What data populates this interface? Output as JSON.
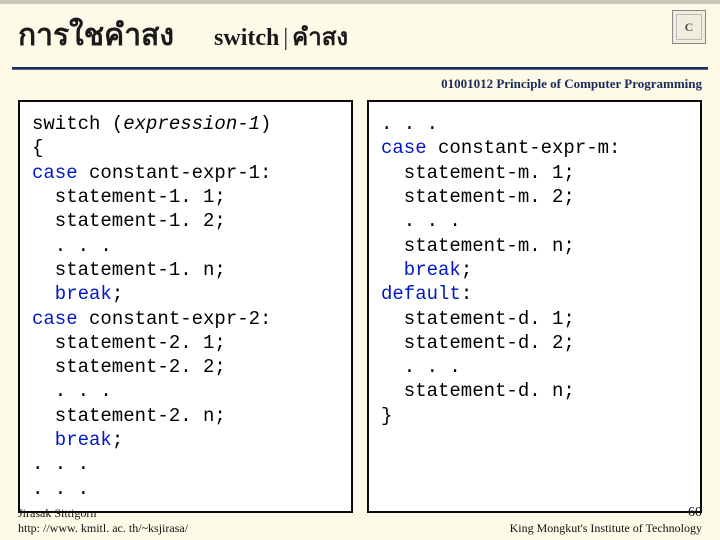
{
  "header": {
    "title_main": "การใชคำสง",
    "title_sub_left": "switch",
    "title_sub_right": "คำสง"
  },
  "course_line": "01001012 Principle of Computer Programming",
  "code_left": {
    "lines": [
      {
        "t": "switch (",
        "k": false
      },
      {
        "t": "expression-1",
        "k": false,
        "em": true
      },
      {
        "t": ")",
        "k": false,
        "br": true
      },
      {
        "t": "{",
        "k": false,
        "br": true
      },
      {
        "t": "case",
        "k": true
      },
      {
        "t": " constant-expr-1:",
        "k": false,
        "br": true
      },
      {
        "t": "statement-1. 1;",
        "k": false,
        "ind": true,
        "br": true
      },
      {
        "t": "statement-1. 2;",
        "k": false,
        "ind": true,
        "br": true
      },
      {
        "t": ". . .",
        "k": false,
        "ind": true,
        "br": true
      },
      {
        "t": "statement-1. n;",
        "k": false,
        "ind": true,
        "br": true
      },
      {
        "t": "break",
        "k": true,
        "ind": true
      },
      {
        "t": ";",
        "k": false,
        "br": true
      },
      {
        "t": "case",
        "k": true
      },
      {
        "t": " constant-expr-2:",
        "k": false,
        "br": true
      },
      {
        "t": "statement-2. 1;",
        "k": false,
        "ind": true,
        "br": true
      },
      {
        "t": "statement-2. 2;",
        "k": false,
        "ind": true,
        "br": true
      },
      {
        "t": ". . .",
        "k": false,
        "ind": true,
        "br": true
      },
      {
        "t": "statement-2. n;",
        "k": false,
        "ind": true,
        "br": true
      },
      {
        "t": "break",
        "k": true,
        "ind": true
      },
      {
        "t": ";",
        "k": false,
        "br": true
      },
      {
        "t": ". . .",
        "k": false,
        "br": true
      },
      {
        "t": ". . .",
        "k": false,
        "br": true
      }
    ]
  },
  "code_right": {
    "lines": [
      {
        "t": ". . .",
        "k": false,
        "br": true
      },
      {
        "t": "case",
        "k": true
      },
      {
        "t": " constant-expr-m:",
        "k": false,
        "br": true
      },
      {
        "t": "statement-m. 1;",
        "k": false,
        "ind": true,
        "br": true
      },
      {
        "t": "statement-m. 2;",
        "k": false,
        "ind": true,
        "br": true
      },
      {
        "t": ". . .",
        "k": false,
        "ind": true,
        "br": true
      },
      {
        "t": "statement-m. n;",
        "k": false,
        "ind": true,
        "br": true
      },
      {
        "t": "break",
        "k": true,
        "ind": true
      },
      {
        "t": ";",
        "k": false,
        "br": true
      },
      {
        "t": "default",
        "k": true
      },
      {
        "t": ":",
        "k": false,
        "br": true
      },
      {
        "t": "statement-d. 1;",
        "k": false,
        "ind": true,
        "br": true
      },
      {
        "t": "statement-d. 2;",
        "k": false,
        "ind": true,
        "br": true
      },
      {
        "t": ". . .",
        "k": false,
        "ind": true,
        "br": true
      },
      {
        "t": "statement-d. n;",
        "k": false,
        "ind": true,
        "br": true
      },
      {
        "t": "}",
        "k": false,
        "br": true
      }
    ]
  },
  "footer": {
    "author": "Jirasak Sittigorn",
    "url": "http: //www. kmitl. ac. th/~ksjirasa/",
    "pagenum": "60",
    "inst": "King Mongkut's Institute of Technology"
  },
  "logo_text": "C",
  "colors": {
    "bg": "#fdfbe8",
    "rule": "#1a2a5a",
    "keyword": "#0018c8"
  }
}
